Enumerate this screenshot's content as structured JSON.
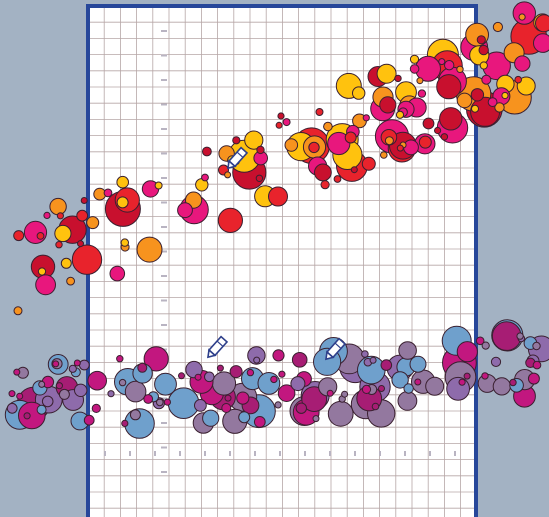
{
  "scene": {
    "background": "#a3b2c3",
    "paper_color": "#ffffff",
    "frame_color": "#27479a",
    "grid_color": "#b6a6a6",
    "icon": "pencil-icon",
    "palette_warm": [
      "#e8232c",
      "#f7931e",
      "#ffc20e",
      "#e8177d",
      "#c8102e"
    ],
    "palette_cool": [
      "#8e6bab",
      "#a71d74",
      "#c2177f",
      "#6fa0cc",
      "#93789f"
    ]
  }
}
